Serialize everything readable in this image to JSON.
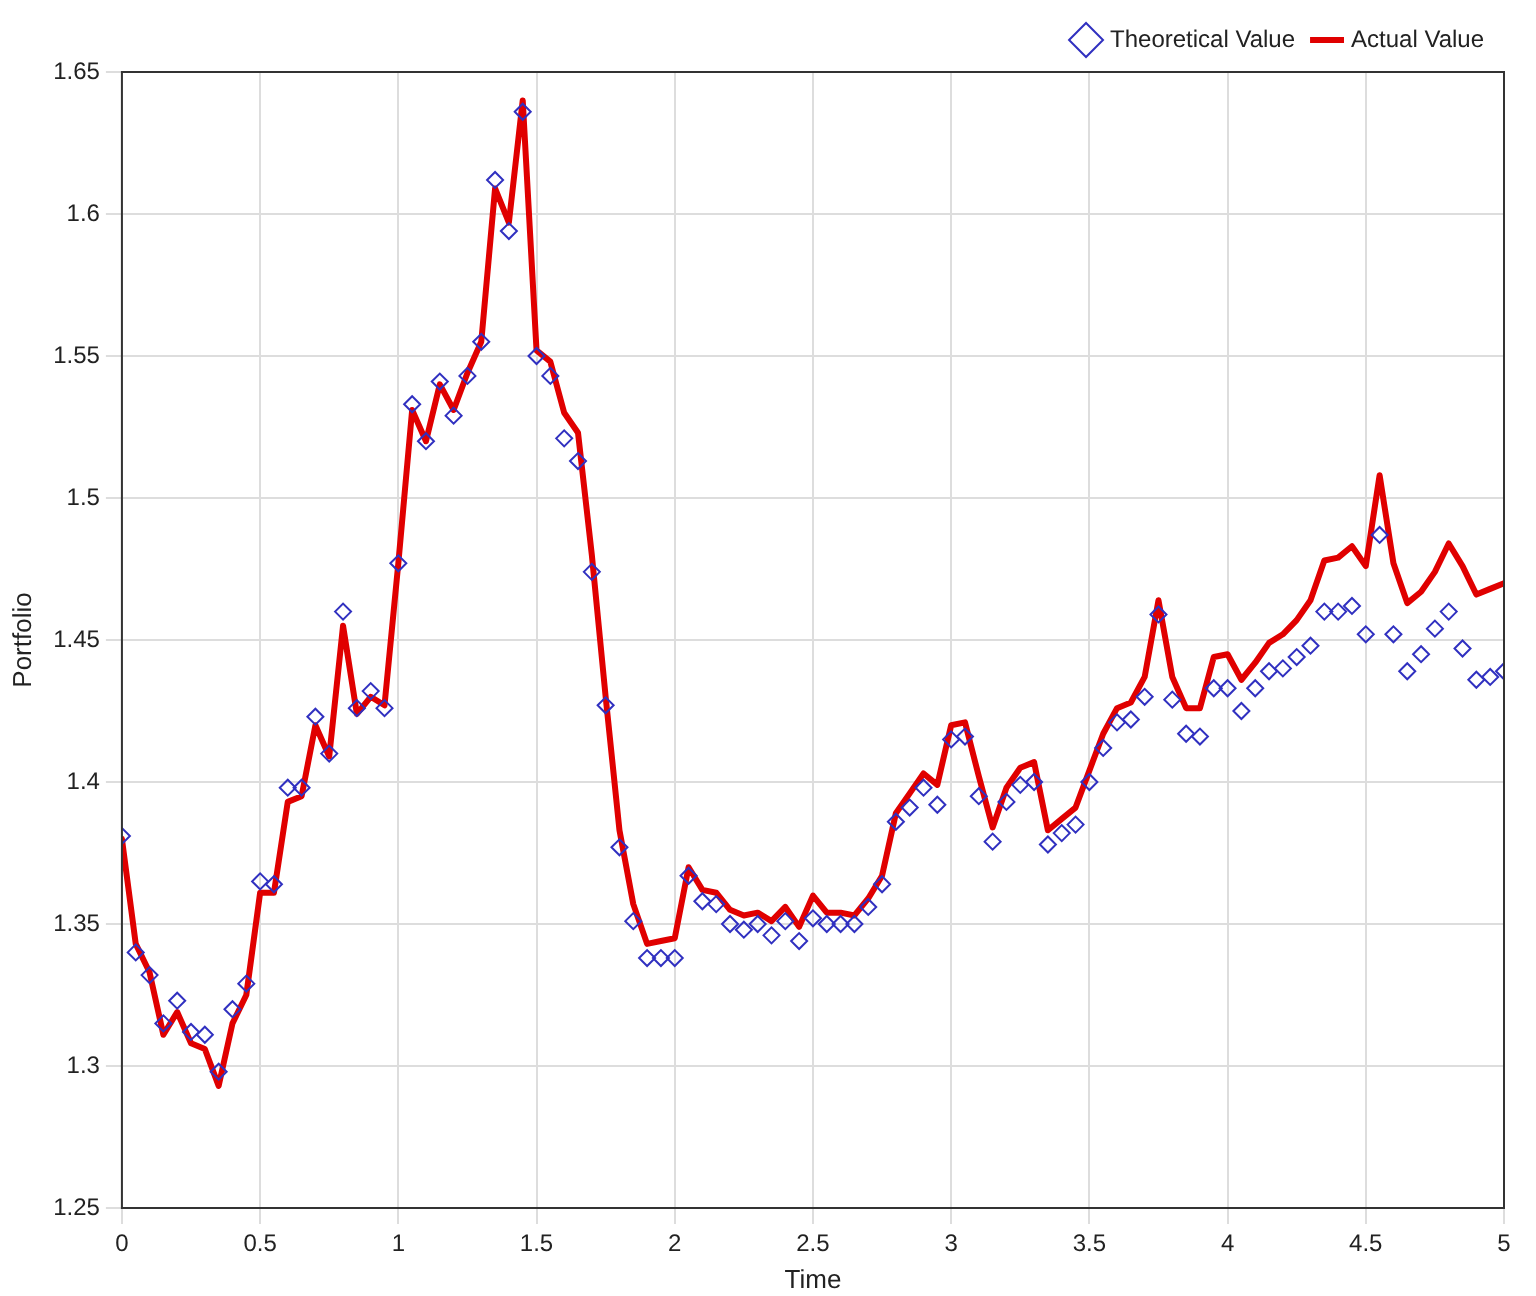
{
  "chart_data": {
    "type": "line",
    "xlabel": "Time",
    "ylabel": "Portfolio",
    "x": [
      0,
      0.05,
      0.1,
      0.15,
      0.2,
      0.25,
      0.3,
      0.35,
      0.4,
      0.45,
      0.5,
      0.55,
      0.6,
      0.65,
      0.7,
      0.75,
      0.8,
      0.85,
      0.9,
      0.95,
      1,
      1.05,
      1.1,
      1.15,
      1.2,
      1.25,
      1.3,
      1.35,
      1.4,
      1.45,
      1.5,
      1.55,
      1.6,
      1.65,
      1.7,
      1.75,
      1.8,
      1.85,
      1.9,
      1.95,
      2,
      2.05,
      2.1,
      2.15,
      2.2,
      2.25,
      2.3,
      2.35,
      2.4,
      2.45,
      2.5,
      2.55,
      2.6,
      2.65,
      2.7,
      2.75,
      2.8,
      2.85,
      2.9,
      2.95,
      3,
      3.05,
      3.1,
      3.15,
      3.2,
      3.25,
      3.3,
      3.35,
      3.4,
      3.45,
      3.5,
      3.55,
      3.6,
      3.65,
      3.7,
      3.75,
      3.8,
      3.85,
      3.9,
      3.95,
      4,
      4.05,
      4.1,
      4.15,
      4.2,
      4.25,
      4.3,
      4.35,
      4.4,
      4.45,
      4.5,
      4.55,
      4.6,
      4.65,
      4.7,
      4.75,
      4.8,
      4.85,
      4.9,
      4.95,
      5
    ],
    "series": [
      {
        "name": "Theoretical Value",
        "type": "scatter",
        "marker": "diamond",
        "color": "#3030c0",
        "values": [
          1.381,
          1.34,
          1.332,
          1.315,
          1.323,
          1.312,
          1.311,
          1.298,
          1.32,
          1.329,
          1.365,
          1.364,
          1.398,
          1.398,
          1.423,
          1.41,
          1.46,
          1.426,
          1.432,
          1.426,
          1.477,
          1.533,
          1.52,
          1.541,
          1.529,
          1.543,
          1.555,
          1.612,
          1.594,
          1.636,
          1.55,
          1.543,
          1.521,
          1.513,
          1.474,
          1.427,
          1.377,
          1.351,
          1.338,
          1.338,
          1.338,
          1.367,
          1.358,
          1.357,
          1.35,
          1.348,
          1.35,
          1.346,
          1.351,
          1.344,
          1.352,
          1.35,
          1.35,
          1.35,
          1.356,
          1.364,
          1.386,
          1.391,
          1.398,
          1.392,
          1.415,
          1.416,
          1.395,
          1.379,
          1.393,
          1.399,
          1.4,
          1.378,
          1.382,
          1.385,
          1.4,
          1.412,
          1.421,
          1.422,
          1.43,
          1.459,
          1.429,
          1.417,
          1.416,
          1.433,
          1.433,
          1.425,
          1.433,
          1.439,
          1.44,
          1.444,
          1.448,
          1.46,
          1.46,
          1.462,
          1.452,
          1.487,
          1.452,
          1.439,
          1.445,
          1.454,
          1.46,
          1.447,
          1.436,
          1.437,
          1.439
        ]
      },
      {
        "name": "Actual Value",
        "marker": "none",
        "line_style": "solid",
        "color": "#e00000",
        "values": [
          1.38,
          1.343,
          1.333,
          1.311,
          1.319,
          1.308,
          1.306,
          1.293,
          1.315,
          1.325,
          1.361,
          1.361,
          1.393,
          1.395,
          1.42,
          1.409,
          1.455,
          1.424,
          1.43,
          1.427,
          1.477,
          1.531,
          1.52,
          1.54,
          1.531,
          1.544,
          1.555,
          1.609,
          1.597,
          1.64,
          1.552,
          1.548,
          1.53,
          1.523,
          1.48,
          1.43,
          1.383,
          1.357,
          1.343,
          1.344,
          1.345,
          1.37,
          1.362,
          1.361,
          1.355,
          1.353,
          1.354,
          1.351,
          1.356,
          1.349,
          1.36,
          1.354,
          1.354,
          1.353,
          1.359,
          1.367,
          1.389,
          1.396,
          1.403,
          1.399,
          1.42,
          1.421,
          1.402,
          1.384,
          1.398,
          1.405,
          1.407,
          1.383,
          1.387,
          1.391,
          1.404,
          1.417,
          1.426,
          1.428,
          1.437,
          1.464,
          1.437,
          1.426,
          1.426,
          1.444,
          1.445,
          1.436,
          1.442,
          1.449,
          1.452,
          1.457,
          1.464,
          1.478,
          1.479,
          1.483,
          1.476,
          1.508,
          1.477,
          1.463,
          1.467,
          1.474,
          1.484,
          1.476,
          1.466,
          1.468,
          1.47
        ]
      }
    ],
    "xlim": [
      0,
      5
    ],
    "xticks": [
      0,
      0.5,
      1,
      1.5,
      2,
      2.5,
      3,
      3.5,
      4,
      4.5,
      5
    ],
    "ylim": [
      1.25,
      1.65
    ],
    "yticks": [
      1.25,
      1.3,
      1.35,
      1.4,
      1.45,
      1.5,
      1.55,
      1.6,
      1.65
    ],
    "grid": true,
    "legend": "top right"
  }
}
